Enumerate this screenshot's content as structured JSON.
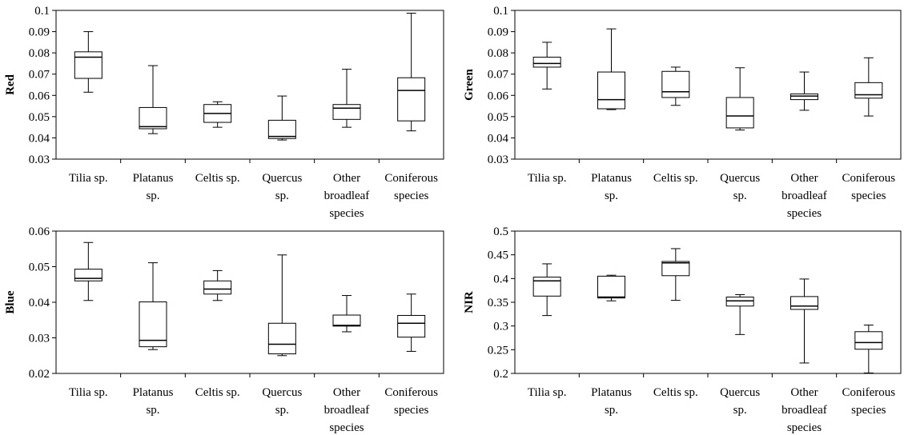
{
  "chart_data": [
    {
      "type": "boxplot",
      "ylabel": "Red",
      "ylim": [
        0.03,
        0.1
      ],
      "yticks": [
        "0.03",
        "0.04",
        "0.05",
        "0.06",
        "0.07",
        "0.08",
        "0.09",
        "0.1"
      ],
      "categories": [
        [
          "Tilia sp."
        ],
        [
          "Platanus",
          "sp."
        ],
        [
          "Celtis sp."
        ],
        [
          "Quercus",
          "sp."
        ],
        [
          "Other",
          "broadleaf",
          "species"
        ],
        [
          "Coniferous",
          "species"
        ]
      ],
      "boxes": [
        {
          "min": 0.0615,
          "q1": 0.068,
          "median": 0.078,
          "q3": 0.0805,
          "max": 0.09
        },
        {
          "min": 0.042,
          "q1": 0.0443,
          "median": 0.0453,
          "q3": 0.0543,
          "max": 0.074
        },
        {
          "min": 0.045,
          "q1": 0.0473,
          "median": 0.0515,
          "q3": 0.0557,
          "max": 0.057
        },
        {
          "min": 0.039,
          "q1": 0.0397,
          "median": 0.0407,
          "q3": 0.0483,
          "max": 0.0597
        },
        {
          "min": 0.045,
          "q1": 0.0487,
          "median": 0.054,
          "q3": 0.0557,
          "max": 0.0723
        },
        {
          "min": 0.0433,
          "q1": 0.048,
          "median": 0.0623,
          "q3": 0.0683,
          "max": 0.0987
        }
      ]
    },
    {
      "type": "boxplot",
      "ylabel": "Green",
      "ylim": [
        0.03,
        0.1
      ],
      "yticks": [
        "0.03",
        "0.04",
        "0.05",
        "0.06",
        "0.07",
        "0.08",
        "0.09",
        "0.1"
      ],
      "categories": [
        [
          "Tilia sp."
        ],
        [
          "Platanus",
          "sp."
        ],
        [
          "Celtis sp."
        ],
        [
          "Quercus",
          "sp."
        ],
        [
          "Other",
          "broadleaf",
          "species"
        ],
        [
          "Coniferous",
          "species"
        ]
      ],
      "boxes": [
        {
          "min": 0.063,
          "q1": 0.0733,
          "median": 0.075,
          "q3": 0.078,
          "max": 0.085
        },
        {
          "min": 0.0533,
          "q1": 0.0537,
          "median": 0.058,
          "q3": 0.071,
          "max": 0.0913
        },
        {
          "min": 0.0553,
          "q1": 0.059,
          "median": 0.0617,
          "q3": 0.0713,
          "max": 0.0733
        },
        {
          "min": 0.0437,
          "q1": 0.0447,
          "median": 0.0503,
          "q3": 0.059,
          "max": 0.073
        },
        {
          "min": 0.053,
          "q1": 0.058,
          "median": 0.0597,
          "q3": 0.0607,
          "max": 0.071
        },
        {
          "min": 0.0503,
          "q1": 0.0587,
          "median": 0.0603,
          "q3": 0.066,
          "max": 0.0777
        }
      ]
    },
    {
      "type": "boxplot",
      "ylabel": "Blue",
      "ylim": [
        0.02,
        0.06
      ],
      "yticks": [
        "0.02",
        "0.03",
        "0.04",
        "0.05",
        "0.06"
      ],
      "categories": [
        [
          "Tilia sp."
        ],
        [
          "Platanus",
          "sp."
        ],
        [
          "Celtis sp."
        ],
        [
          "Quercus",
          "sp."
        ],
        [
          "Other",
          "broadleaf",
          "species"
        ],
        [
          "Coniferous",
          "species"
        ]
      ],
      "boxes": [
        {
          "min": 0.0405,
          "q1": 0.046,
          "median": 0.0467,
          "q3": 0.0493,
          "max": 0.0568
        },
        {
          "min": 0.0267,
          "q1": 0.0275,
          "median": 0.0293,
          "q3": 0.0401,
          "max": 0.0511
        },
        {
          "min": 0.0405,
          "q1": 0.0423,
          "median": 0.0437,
          "q3": 0.046,
          "max": 0.0489
        },
        {
          "min": 0.025,
          "q1": 0.0255,
          "median": 0.0282,
          "q3": 0.0341,
          "max": 0.0533
        },
        {
          "min": 0.0317,
          "q1": 0.0333,
          "median": 0.0335,
          "q3": 0.0364,
          "max": 0.0419
        },
        {
          "min": 0.0262,
          "q1": 0.0302,
          "median": 0.0341,
          "q3": 0.0363,
          "max": 0.0423
        }
      ]
    },
    {
      "type": "boxplot",
      "ylabel": "NIR",
      "ylim": [
        0.2,
        0.5
      ],
      "yticks": [
        "0.2",
        "0.25",
        "0.3",
        "0.35",
        "0.4",
        "0.45",
        "0.5"
      ],
      "categories": [
        [
          "Tilia sp."
        ],
        [
          "Platanus",
          "sp."
        ],
        [
          "Celtis sp."
        ],
        [
          "Quercus",
          "sp."
        ],
        [
          "Other",
          "broadleaf",
          "species"
        ],
        [
          "Coniferous",
          "species"
        ]
      ],
      "boxes": [
        {
          "min": 0.322,
          "q1": 0.363,
          "median": 0.395,
          "q3": 0.403,
          "max": 0.431
        },
        {
          "min": 0.353,
          "q1": 0.359,
          "median": 0.361,
          "q3": 0.405,
          "max": 0.407
        },
        {
          "min": 0.354,
          "q1": 0.406,
          "median": 0.433,
          "q3": 0.436,
          "max": 0.463
        },
        {
          "min": 0.282,
          "q1": 0.342,
          "median": 0.353,
          "q3": 0.361,
          "max": 0.366
        },
        {
          "min": 0.222,
          "q1": 0.335,
          "median": 0.342,
          "q3": 0.362,
          "max": 0.399
        },
        {
          "min": 0.201,
          "q1": 0.251,
          "median": 0.265,
          "q3": 0.288,
          "max": 0.302
        }
      ]
    }
  ]
}
